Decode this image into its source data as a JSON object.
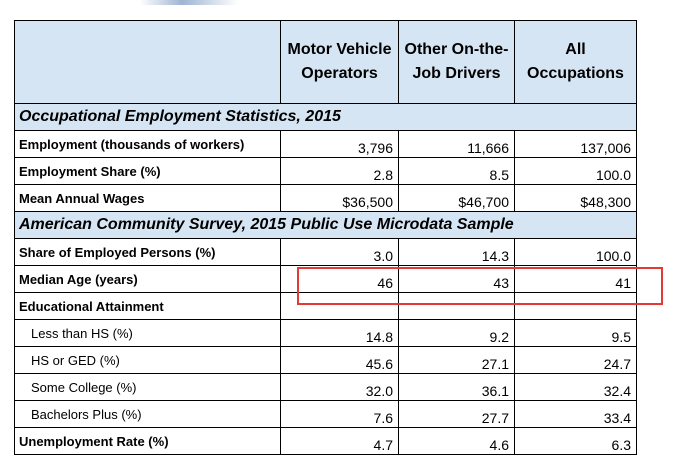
{
  "columns": {
    "c1": "Motor Vehicle Operators",
    "c2": "Other On-the-Job Drivers",
    "c3": "All Occupations"
  },
  "sections": [
    {
      "title": "Occupational Employment Statistics, 2015",
      "rows": [
        {
          "label": "Employment (thousands of workers)",
          "v1": "3,796",
          "v2": "11,666",
          "v3": "137,006"
        },
        {
          "label": "Employment Share  (%)",
          "v1": "2.8",
          "v2": "8.5",
          "v3": "100.0"
        },
        {
          "label": "Mean Annual Wages",
          "v1": "$36,500",
          "v2": "$46,700",
          "v3": "$48,300"
        }
      ]
    },
    {
      "title": "American Community Survey, 2015 Public Use Microdata Sample",
      "rows": [
        {
          "label": "Share of Employed Persons (%)",
          "v1": "3.0",
          "v2": "14.3",
          "v3": "100.0"
        },
        {
          "label": "Median Age (years)",
          "v1": "46",
          "v2": "43",
          "v3": "41"
        },
        {
          "label": "Educational Attainment",
          "v1": "",
          "v2": "",
          "v3": ""
        },
        {
          "label": "Less than HS (%)",
          "v1": "14.8",
          "v2": "9.2",
          "v3": "9.5"
        },
        {
          "label": "HS or GED (%)",
          "v1": "45.6",
          "v2": "27.1",
          "v3": "24.7"
        },
        {
          "label": "Some College (%)",
          "v1": "32.0",
          "v2": "36.1",
          "v3": "32.4"
        },
        {
          "label": "Bachelors Plus (%)",
          "v1": "7.6",
          "v2": "27.7",
          "v3": "33.4"
        },
        {
          "label": "Unemployment Rate (%)",
          "v1": "4.7",
          "v2": "4.6",
          "v3": "6.3"
        }
      ]
    }
  ],
  "colors": {
    "header_fill": "#d6e5f3",
    "highlight_border": "#e53935"
  }
}
